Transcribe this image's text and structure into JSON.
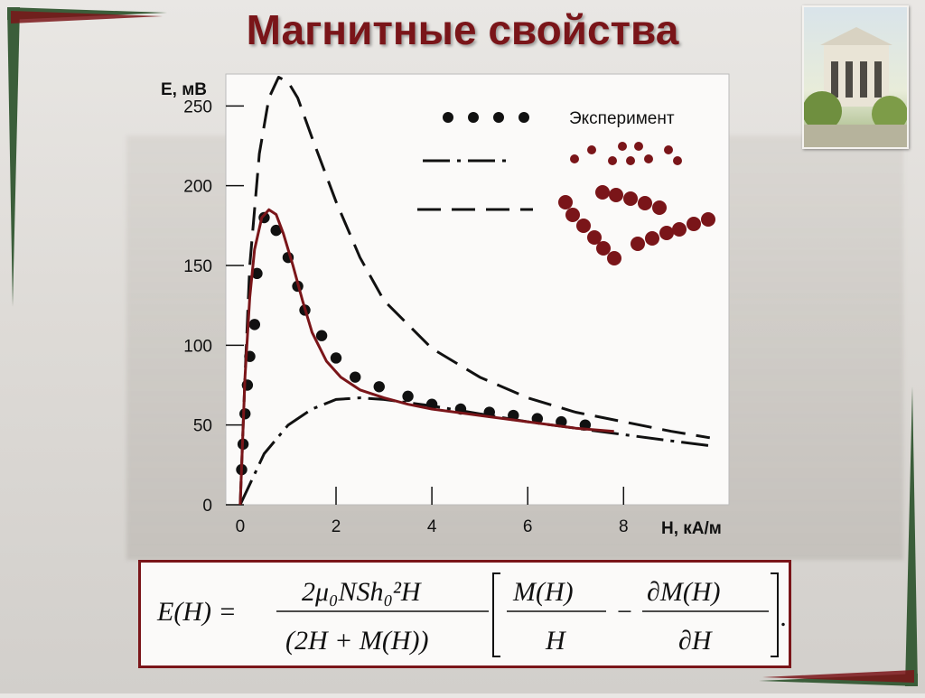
{
  "title": "Магнитные свойства",
  "colors": {
    "title": "#7a1519",
    "model_curve": "#7a1519",
    "legend_dots": "#7a1519",
    "frame_border": "#7a1519"
  },
  "chart_data": {
    "type": "line",
    "ylabel": "E, мВ",
    "xlabel": "H, кА/м",
    "xlim": [
      -0.3,
      10.2
    ],
    "ylim": [
      0,
      270
    ],
    "x_ticks": [
      0,
      2,
      4,
      6,
      8
    ],
    "y_ticks": [
      0,
      50,
      100,
      150,
      200,
      250
    ],
    "x_tick_labels": [
      "0",
      "2",
      "4",
      "6",
      "8"
    ],
    "y_tick_labels": [
      "0",
      "50",
      "100",
      "150",
      "200",
      "250"
    ],
    "legend_label": "Эксперимент",
    "legend_placement": "top-right",
    "grid": false,
    "series": [
      {
        "style": "dots",
        "x": [
          0.03,
          0.06,
          0.1,
          0.15,
          0.2,
          0.3,
          0.35,
          0.5,
          0.75,
          1.0,
          1.2,
          1.35,
          1.7,
          2.0,
          2.4,
          2.9,
          3.5,
          4.0,
          4.6,
          5.2,
          5.7,
          6.2,
          6.7,
          7.2
        ],
        "y": [
          22,
          38,
          57,
          75,
          93,
          113,
          145,
          180,
          172,
          155,
          137,
          122,
          106,
          92,
          80,
          74,
          68,
          63,
          60,
          58,
          56,
          54,
          52,
          50
        ]
      },
      {
        "style": "dashdot",
        "x": [
          0,
          0.5,
          1,
          1.5,
          2,
          2.5,
          3,
          4,
          5,
          6,
          7,
          8,
          9,
          9.8
        ],
        "y": [
          0,
          32,
          50,
          60,
          66,
          67,
          66,
          62,
          57,
          52,
          48,
          44,
          40,
          37
        ]
      },
      {
        "style": "dashed",
        "x": [
          0,
          0.1,
          0.2,
          0.4,
          0.6,
          0.8,
          1.0,
          1.2,
          1.5,
          2.0,
          2.5,
          3.0,
          4.0,
          5.0,
          6.0,
          7.0,
          8.0,
          9.0,
          9.8
        ],
        "y": [
          0,
          80,
          150,
          220,
          255,
          268,
          265,
          255,
          230,
          190,
          155,
          128,
          98,
          80,
          67,
          58,
          52,
          46,
          42
        ]
      },
      {
        "style": "solid",
        "x": [
          0,
          0.1,
          0.2,
          0.3,
          0.45,
          0.6,
          0.75,
          0.9,
          1.1,
          1.3,
          1.5,
          1.8,
          2.1,
          2.5,
          3.0,
          3.5,
          4.0,
          5.0,
          6.0,
          7.0,
          7.8
        ],
        "y": [
          0,
          80,
          130,
          160,
          180,
          185,
          182,
          170,
          150,
          128,
          108,
          90,
          80,
          72,
          67,
          63,
          60,
          56,
          52,
          48,
          46
        ]
      }
    ]
  },
  "formula": {
    "lhs": "E(H) =",
    "numerator": "2μ₀NSh₀²H",
    "denominator": "(2H + M(H))",
    "fraction1_num": "M(H)",
    "fraction1_den": "H",
    "minus": "−",
    "fraction2_num": "∂M(H)",
    "fraction2_den": "∂H"
  }
}
